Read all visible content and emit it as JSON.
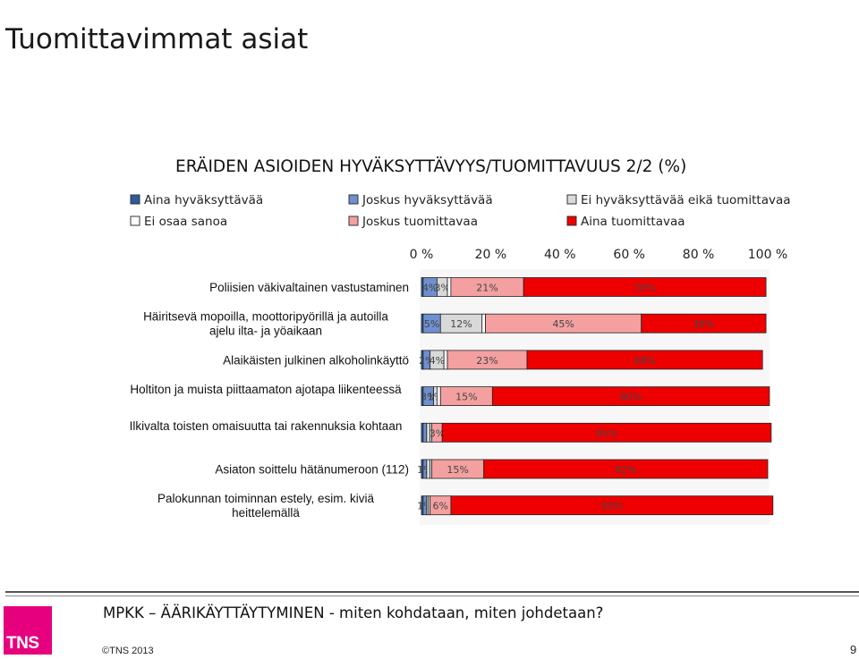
{
  "slide": {
    "title": "Tuomittavimmat asiat",
    "footer_text": "MPKK – ÄÄRIKÄYTTÄYTYMINEN - miten kohdataan, miten johdetaan?",
    "copyright": "©TNS 2013",
    "page_number": "9",
    "logo_text": "TNS"
  },
  "chart_data": {
    "type": "bar",
    "orientation": "horizontal",
    "stacked": true,
    "title": "ERÄIDEN ASIOIDEN HYVÄKSYTTÄVYYS/TUOMITTAVUUS 2/2 (%)",
    "xlim": [
      0,
      100
    ],
    "x_ticks": [
      "0 %",
      "20 %",
      "40 %",
      "60 %",
      "80 %",
      "100 %"
    ],
    "x_axis_position": "top",
    "legend_position": "top",
    "grid": false,
    "categories": [
      "Poliisien väkivaltainen vastustaminen",
      "Häiritsevä mopoilla, moottoripyörillä ja autoilla ajelu ilta- ja yöaikaan",
      "Alaikäisten julkinen alkoholinkäyttö",
      "Holtiton ja muista piittaamaton ajotapa liikenteessä",
      "Ilkivalta toisten omaisuutta tai rakennuksia kohtaan",
      "Asiaton soittelu hätänumeroon (112)",
      "Palokunnan toiminnan estely, esim. kiviä heittelemällä"
    ],
    "series": [
      {
        "name": "Aina hyväksyttävää",
        "color": "#2e5b9a",
        "values": [
          0.5,
          0.5,
          0.5,
          0.5,
          0.5,
          0.5,
          0.5
        ],
        "labels": [
          "",
          "",
          "",
          "",
          "",
          "",
          ""
        ]
      },
      {
        "name": "Joskus hyväksyttävää",
        "color": "#6f8fcf",
        "values": [
          4,
          5,
          2,
          3,
          1,
          1,
          1
        ],
        "labels": [
          "4%",
          "5%",
          "2%",
          "3%",
          "",
          "1%",
          "1%"
        ]
      },
      {
        "name": "Ei hyväksyttävää eikä tuomittavaa",
        "color": "#d9d9d9",
        "values": [
          3,
          12,
          4,
          1,
          1,
          1,
          0.5
        ],
        "labels": [
          "3%",
          "12%",
          "4%",
          "1%",
          "",
          "",
          ""
        ]
      },
      {
        "name": "Ei osaa sanoa",
        "color": "#ffffff",
        "values": [
          1,
          1,
          1,
          1,
          0.5,
          0.5,
          0.5
        ],
        "labels": [
          "",
          "",
          "",
          "",
          "",
          "",
          ""
        ]
      },
      {
        "name": "Joskus tuomittavaa",
        "color": "#f4a0a0",
        "values": [
          21,
          45,
          23,
          15,
          3,
          15,
          6
        ],
        "labels": [
          "21%",
          "45%",
          "23%",
          "15%",
          "3%",
          "15%",
          "6%"
        ]
      },
      {
        "name": "Aina tuomittavaa",
        "color": "#ee0000",
        "values": [
          70,
          36,
          68,
          80,
          95,
          82,
          93
        ],
        "labels": [
          "70%",
          "36%",
          "68%",
          "80%",
          "95%",
          "82%",
          "93%"
        ]
      }
    ]
  }
}
